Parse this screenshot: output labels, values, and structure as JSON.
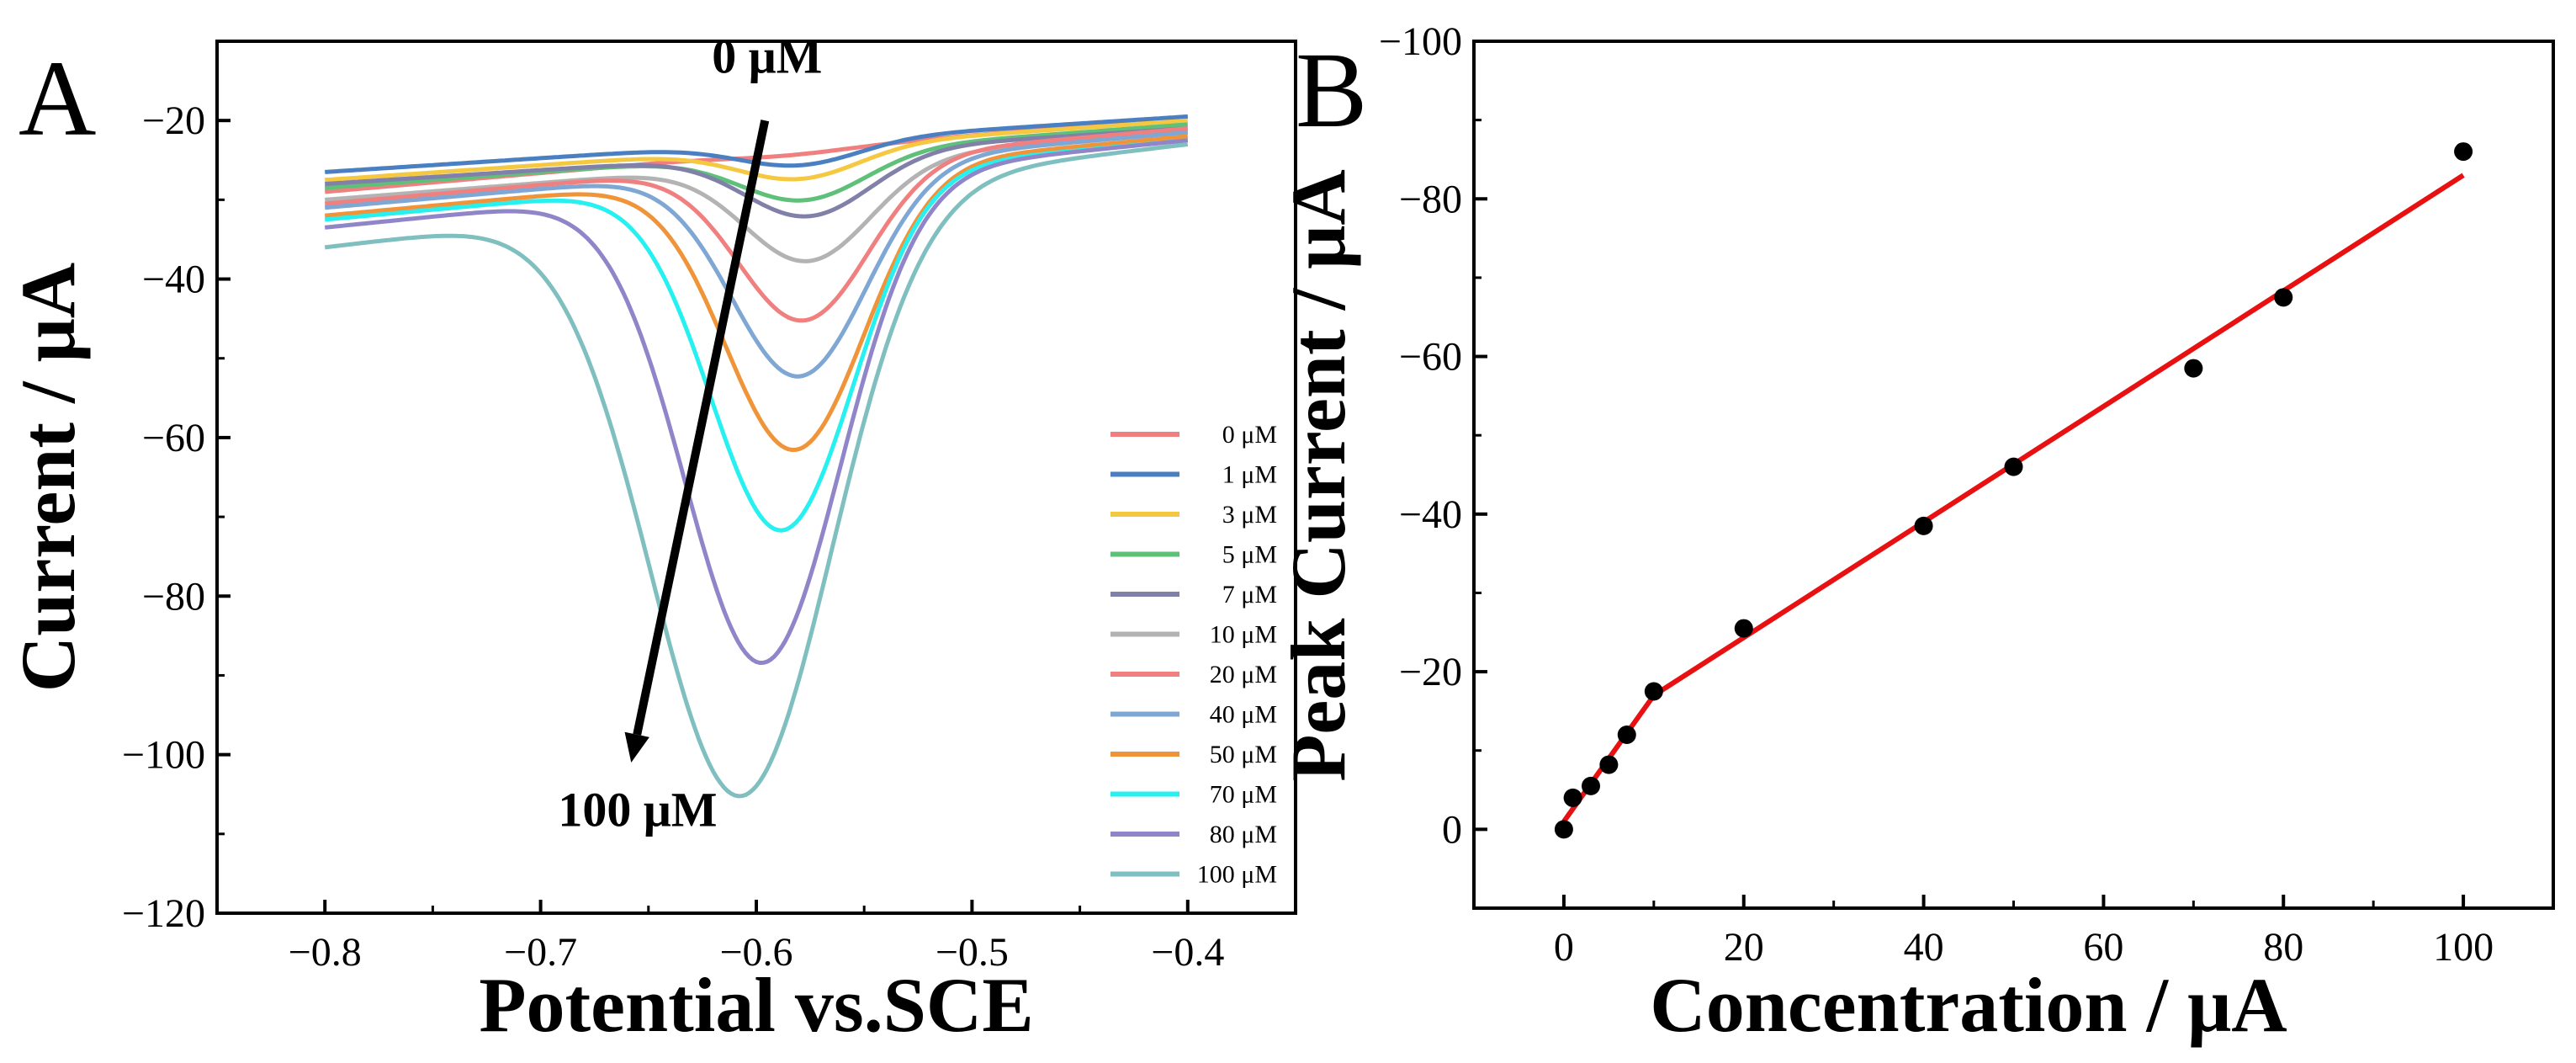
{
  "chart_data": [
    {
      "panel": "A",
      "type": "line",
      "xlabel": "Potential vs.SCE",
      "ylabel": "Current / μA",
      "xlim": [
        -0.85,
        -0.35
      ],
      "ylim": [
        -120,
        -10
      ],
      "xticks": [
        -0.8,
        -0.7,
        -0.6,
        -0.5,
        -0.4
      ],
      "xtick_labels": [
        "−0.8",
        "−0.7",
        "−0.6",
        "−0.5",
        "−0.4"
      ],
      "yticks": [
        -20,
        -40,
        -60,
        -80,
        -100,
        -120
      ],
      "ytick_labels": [
        "−20",
        "−40",
        "−60",
        "−80",
        "−100",
        "−120"
      ],
      "grid": false,
      "legend_position": "bottom-right",
      "annotations": [
        {
          "text": "0 μM",
          "x": -0.595,
          "y": -14
        },
        {
          "text": "100 μM",
          "x": -0.655,
          "y": -109
        }
      ],
      "arrow": {
        "from": [
          -0.596,
          -20
        ],
        "to": [
          -0.658,
          -101
        ]
      },
      "series": [
        {
          "name": "0 μM",
          "color": "#f08080",
          "start": -29.0,
          "end": -19.5,
          "peak_depth": 0.5,
          "peak_x": -0.585,
          "width": 0.028
        },
        {
          "name": "1 μM",
          "color": "#4a7fc1",
          "start": -26.5,
          "end": -19.5,
          "peak_depth": 3.0,
          "peak_x": -0.58,
          "width": 0.028
        },
        {
          "name": "3 μM",
          "color": "#f5c842",
          "start": -27.5,
          "end": -20.0,
          "peak_depth": 4.0,
          "peak_x": -0.58,
          "width": 0.028
        },
        {
          "name": "5 μM",
          "color": "#5fc07a",
          "start": -28.5,
          "end": -20.5,
          "peak_depth": 6.0,
          "peak_x": -0.578,
          "width": 0.029
        },
        {
          "name": "7 μM",
          "color": "#8080a8",
          "start": -28.0,
          "end": -21.0,
          "peak_depth": 8.0,
          "peak_x": -0.576,
          "width": 0.029
        },
        {
          "name": "10 μM",
          "color": "#b3b3b3",
          "start": -30.0,
          "end": -21.5,
          "peak_depth": 12.5,
          "peak_x": -0.576,
          "width": 0.029
        },
        {
          "name": "20 μM",
          "color": "#f08080",
          "start": -30.5,
          "end": -21.0,
          "peak_depth": 20.0,
          "peak_x": -0.578,
          "width": 0.03
        },
        {
          "name": "40 μM",
          "color": "#7fa7d4",
          "start": -31.0,
          "end": -21.5,
          "peak_depth": 26.5,
          "peak_x": -0.58,
          "width": 0.031
        },
        {
          "name": "50 μM",
          "color": "#f0943a",
          "start": -32.0,
          "end": -22.0,
          "peak_depth": 35.0,
          "peak_x": -0.582,
          "width": 0.032
        },
        {
          "name": "70 μM",
          "color": "#27f0f0",
          "start": -32.5,
          "end": -22.5,
          "peak_depth": 44.5,
          "peak_x": -0.588,
          "width": 0.033
        },
        {
          "name": "80 μM",
          "color": "#8f85c8",
          "start": -33.5,
          "end": -22.5,
          "peak_depth": 60.5,
          "peak_x": -0.597,
          "width": 0.036
        },
        {
          "name": "100 μM",
          "color": "#7fbfbf",
          "start": -36.0,
          "end": -23.0,
          "peak_depth": 75.5,
          "peak_x": -0.607,
          "width": 0.042
        }
      ]
    },
    {
      "panel": "B",
      "type": "scatter",
      "xlabel": "Concentration / μA",
      "ylabel": "Peak Current / μA",
      "xlim": [
        -10,
        110
      ],
      "ylim": [
        10,
        -100
      ],
      "xticks": [
        0,
        20,
        40,
        60,
        80,
        100
      ],
      "xtick_labels": [
        "0",
        "20",
        "40",
        "60",
        "80",
        "100"
      ],
      "yticks": [
        0,
        -20,
        -40,
        -60,
        -80,
        -100
      ],
      "ytick_labels": [
        "0",
        "−20",
        "−40",
        "−60",
        "−80",
        "−100"
      ],
      "grid": false,
      "x": [
        0,
        1,
        3,
        5,
        7,
        10,
        20,
        40,
        50,
        70,
        80,
        100
      ],
      "y": [
        0,
        -4,
        -5.5,
        -8.2,
        -12,
        -17.5,
        -25.5,
        -38.5,
        -46,
        -58.5,
        -67.5,
        -86
      ],
      "fit": {
        "color": "#e81010",
        "segments": [
          {
            "x": [
              0,
              10
            ],
            "y": [
              -1.0,
              -17.0
            ]
          },
          {
            "x": [
              10,
              100
            ],
            "y": [
              -17.0,
              -83.0
            ]
          }
        ]
      }
    }
  ]
}
